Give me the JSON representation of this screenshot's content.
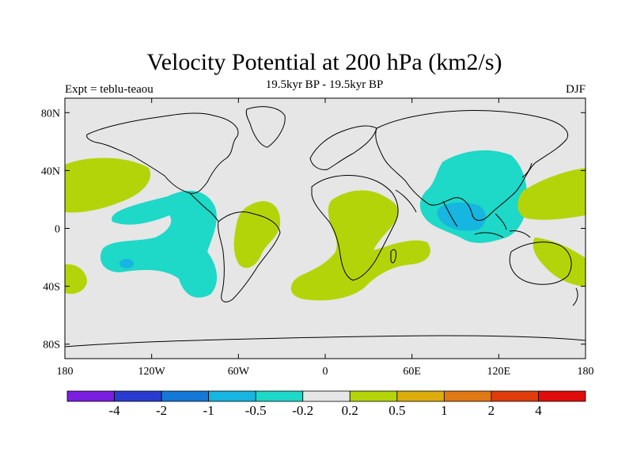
{
  "chart_data": {
    "type": "heatmap",
    "title": "Velocity Potential at 200 hPa (km2/s)",
    "subtitle": "19.5kyr BP - 19.5kyr BP",
    "left_label": "Expt = teblu-teaou",
    "right_label": "DJF",
    "x_ticks": [
      "180",
      "120W",
      "60W",
      "0",
      "60E",
      "120E",
      "180"
    ],
    "x_tick_values": [
      -180,
      -120,
      -60,
      0,
      60,
      120,
      180
    ],
    "y_ticks": [
      "80N",
      "40N",
      "0",
      "40S",
      "80S"
    ],
    "y_tick_values": [
      80,
      40,
      0,
      -40,
      -80
    ],
    "xlim": [
      -180,
      180
    ],
    "ylim": [
      -90,
      90
    ],
    "colorbar": {
      "labels": [
        "-4",
        "-2",
        "-1",
        "-0.5",
        "-0.2",
        "0.2",
        "0.5",
        "1",
        "2",
        "4"
      ],
      "colors": [
        "#7a1ee0",
        "#2a3ccf",
        "#1478d6",
        "#16b6e0",
        "#1ed8c8",
        "#e6e6e6",
        "#b4d40a",
        "#dcac0c",
        "#e07814",
        "#e03c0c",
        "#e00c0c"
      ]
    },
    "regions": [
      {
        "name": "positive-north-pacific",
        "level": "0.2 to 0.5",
        "color": "#b4d40a",
        "lon": [
          -180,
          -140
        ],
        "lat": [
          5,
          45
        ]
      },
      {
        "name": "negative-east-pacific",
        "level": "-0.5 to -0.2",
        "color": "#1ed8c8",
        "lon": [
          -160,
          -80
        ],
        "lat": [
          -45,
          25
        ]
      },
      {
        "name": "negative-south-pacific-core",
        "level": "-1 to -0.5",
        "color": "#16b6e0",
        "lon": [
          -147,
          -137
        ],
        "lat": [
          -30,
          -22
        ]
      },
      {
        "name": "positive-south-america",
        "level": "0.2 to 0.5",
        "color": "#b4d40a",
        "lon": [
          -65,
          -30
        ],
        "lat": [
          -30,
          20
        ]
      },
      {
        "name": "positive-south-pacific-west",
        "level": "0.2 to 0.5",
        "color": "#b4d40a",
        "lon": [
          -180,
          -165
        ],
        "lat": [
          -45,
          -25
        ]
      },
      {
        "name": "positive-africa",
        "level": "0.2 to 0.5",
        "color": "#b4d40a",
        "lon": [
          -25,
          75
        ],
        "lat": [
          -45,
          30
        ]
      },
      {
        "name": "negative-asia-maritime",
        "level": "-0.5 to -0.2",
        "color": "#1ed8c8",
        "lon": [
          65,
          135
        ],
        "lat": [
          -10,
          55
        ]
      },
      {
        "name": "negative-indian-ocean-core",
        "level": "-1 to -0.5",
        "color": "#16b6e0",
        "lon": [
          80,
          115
        ],
        "lat": [
          0,
          20
        ]
      },
      {
        "name": "positive-west-pacific",
        "level": "0.2 to 0.5",
        "color": "#b4d40a",
        "lon": [
          135,
          180
        ],
        "lat": [
          5,
          45
        ]
      },
      {
        "name": "positive-australia",
        "level": "0.2 to 0.5",
        "color": "#b4d40a",
        "lon": [
          145,
          180
        ],
        "lat": [
          -40,
          -15
        ]
      }
    ]
  }
}
